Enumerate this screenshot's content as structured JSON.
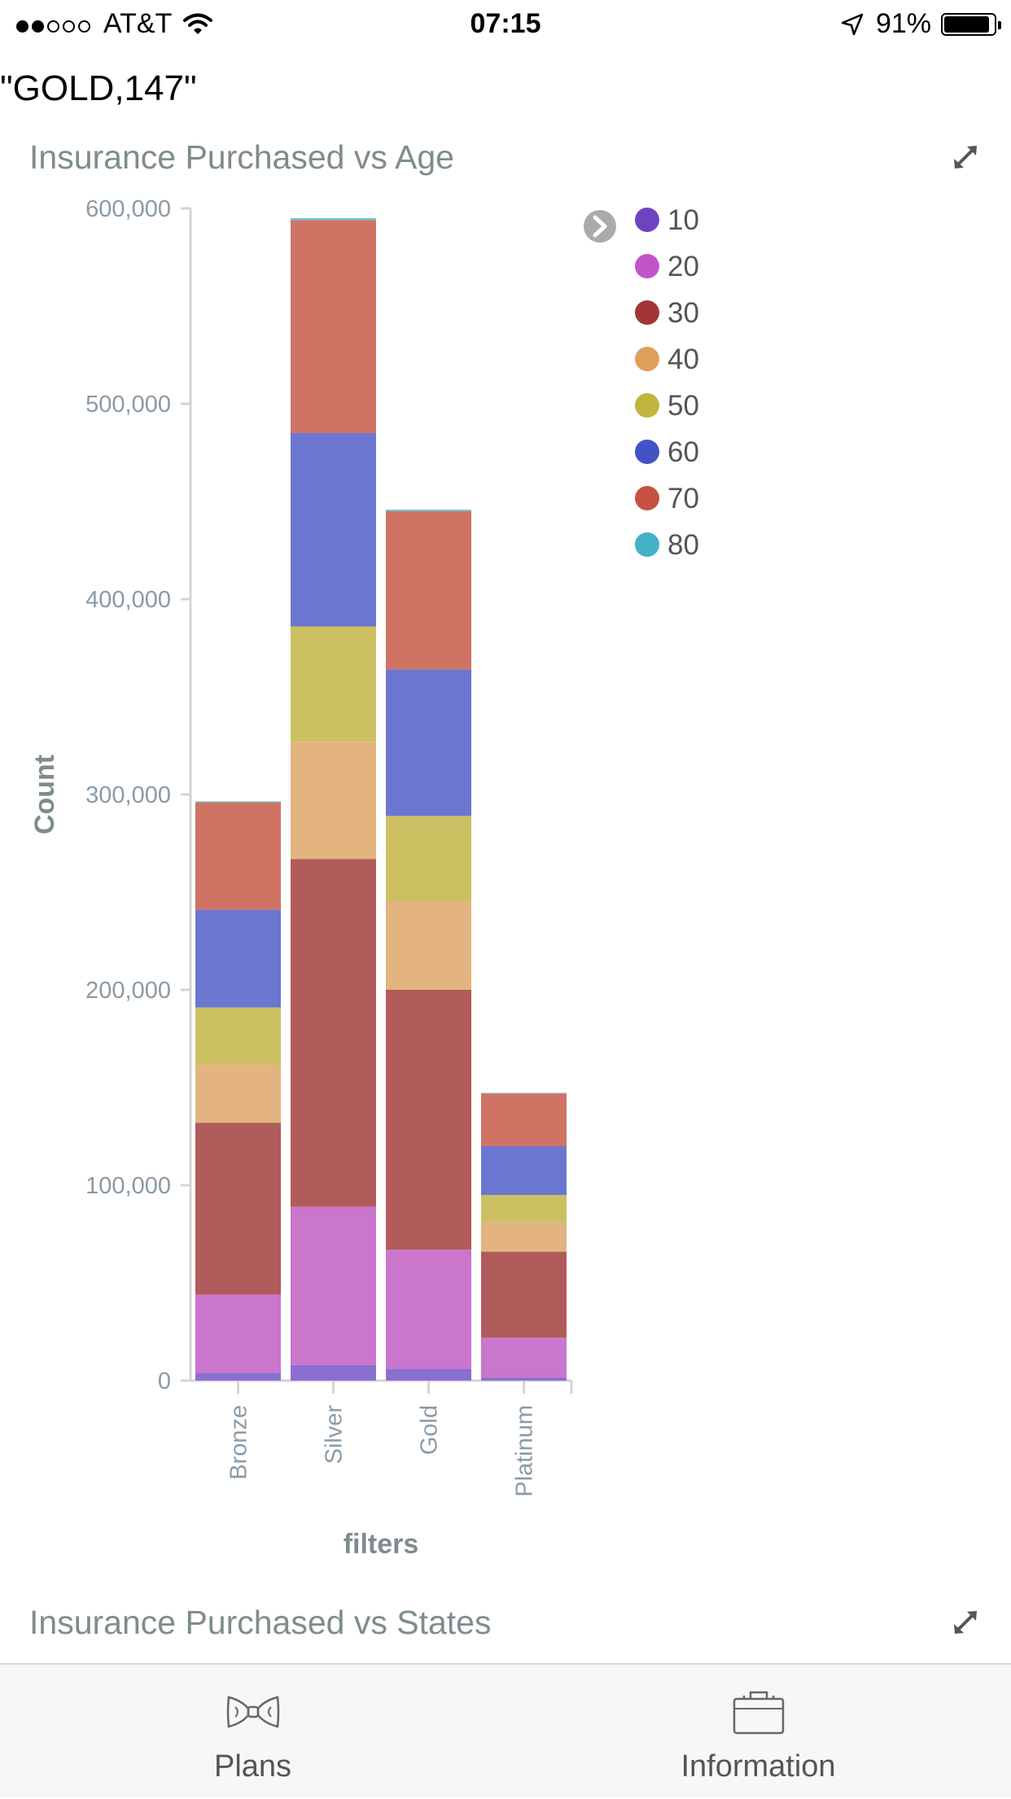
{
  "status_bar": {
    "signal_dots": [
      true,
      true,
      false,
      false,
      false
    ],
    "carrier": "AT&T",
    "time": "07:15",
    "battery": "91%",
    "battery_level": 0.91,
    "icons": [
      "wifi-icon",
      "location-arrow-icon",
      "battery-icon"
    ]
  },
  "top_value": "\"GOLD,147\"",
  "charts": {
    "age_title": "Insurance Purchased vs Age",
    "states_title": "Insurance Purchased vs States",
    "expand_icon": "expand-arrows-icon"
  },
  "chart_data": {
    "type": "bar",
    "stacked": true,
    "title": "Insurance Purchased vs Age",
    "xlabel": "filters",
    "ylabel": "Count",
    "ylim": [
      0,
      600000
    ],
    "yticks": [
      0,
      100000,
      200000,
      300000,
      400000,
      500000,
      600000
    ],
    "ytick_labels": [
      "0",
      "100,000",
      "200,000",
      "300,000",
      "400,000",
      "500,000",
      "600,000"
    ],
    "categories": [
      "Bronze",
      "Silver",
      "Gold",
      "Platinum"
    ],
    "legend_position": "top-right",
    "legend_toggle_icon": "chevron-right-circle-icon",
    "series": [
      {
        "name": "10",
        "color": "#6f42c1",
        "bar_color": "#8b6fd0",
        "values": [
          4000,
          8000,
          6000,
          1500
        ]
      },
      {
        "name": "20",
        "color": "#c254c9",
        "bar_color": "#c976cc",
        "values": [
          40000,
          81000,
          61000,
          20500
        ]
      },
      {
        "name": "30",
        "color": "#a33535",
        "bar_color": "#b25b5b",
        "values": [
          88000,
          178000,
          133000,
          44000
        ]
      },
      {
        "name": "40",
        "color": "#e0a05c",
        "bar_color": "#e3b47f",
        "values": [
          30000,
          60000,
          45000,
          15000
        ]
      },
      {
        "name": "50",
        "color": "#c2b43e",
        "bar_color": "#ccc063",
        "values": [
          29000,
          59000,
          44000,
          14000
        ]
      },
      {
        "name": "60",
        "color": "#4352c4",
        "bar_color": "#6b76d0",
        "values": [
          50000,
          99000,
          75000,
          25000
        ]
      },
      {
        "name": "70",
        "color": "#c75140",
        "bar_color": "#cf7465",
        "values": [
          55000,
          109000,
          81000,
          27000
        ]
      },
      {
        "name": "80",
        "color": "#45b1c9",
        "bar_color": "#6fc1d3",
        "values": [
          500,
          1000,
          800,
          300
        ]
      }
    ]
  },
  "tab_bar": {
    "tabs": [
      {
        "label": "Plans",
        "icon": "bow-tie-icon"
      },
      {
        "label": "Information",
        "icon": "briefcase-icon"
      }
    ]
  }
}
